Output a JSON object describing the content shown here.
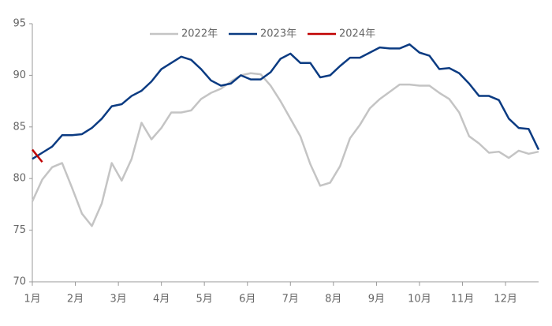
{
  "chart_data": {
    "type": "line",
    "x": [
      0,
      1,
      2,
      3,
      4,
      5,
      6,
      7,
      8,
      9,
      10,
      11,
      12,
      13,
      14,
      15,
      16,
      17,
      18,
      19,
      20,
      21,
      22,
      23,
      24,
      25,
      26,
      27,
      28,
      29,
      30,
      31,
      32,
      33,
      34,
      35,
      36,
      37,
      38,
      39,
      40,
      41,
      42,
      43,
      44,
      45,
      46,
      47,
      48,
      49,
      50,
      51
    ],
    "xlim": [
      0,
      51
    ],
    "xticks": [
      {
        "value": 0,
        "label": "1月"
      },
      {
        "value": 4.33,
        "label": "2月"
      },
      {
        "value": 8.67,
        "label": "3月"
      },
      {
        "value": 13,
        "label": "4月"
      },
      {
        "value": 17.33,
        "label": "5月"
      },
      {
        "value": 21.67,
        "label": "6月"
      },
      {
        "value": 26,
        "label": "7月"
      },
      {
        "value": 30.33,
        "label": "8月"
      },
      {
        "value": 34.67,
        "label": "9月"
      },
      {
        "value": 39,
        "label": "10月"
      },
      {
        "value": 43.33,
        "label": "11月"
      },
      {
        "value": 47.67,
        "label": "12月"
      }
    ],
    "ylim": [
      70,
      95
    ],
    "yticks": [
      70,
      75,
      80,
      85,
      90,
      95
    ],
    "grid": false,
    "legend": "top",
    "series": [
      {
        "name": "2022年",
        "color": "#c4c4c4",
        "values": [
          77.8,
          79.9,
          81.1,
          81.5,
          79.1,
          76.6,
          75.4,
          77.6,
          81.5,
          79.8,
          81.9,
          85.4,
          83.8,
          84.9,
          86.4,
          86.4,
          86.6,
          87.7,
          88.3,
          88.7,
          89.4,
          90.0,
          90.2,
          90.1,
          89.0,
          87.5,
          85.8,
          84.1,
          81.4,
          79.3,
          79.6,
          81.2,
          83.9,
          85.2,
          86.8,
          87.7,
          88.4,
          89.1,
          89.1,
          89.0,
          89.0,
          88.3,
          87.7,
          86.4,
          84.1,
          83.4,
          82.5,
          82.6,
          82.0,
          82.7,
          82.4,
          82.6
        ]
      },
      {
        "name": "2023年",
        "color": "#0b3b82",
        "values": [
          81.9,
          82.5,
          83.1,
          84.2,
          84.2,
          84.3,
          84.9,
          85.8,
          87.0,
          87.2,
          88.0,
          88.5,
          89.4,
          90.6,
          91.2,
          91.8,
          91.5,
          90.6,
          89.5,
          89.0,
          89.2,
          90.0,
          89.6,
          89.6,
          90.3,
          91.6,
          92.1,
          91.2,
          91.2,
          89.8,
          90.0,
          90.9,
          91.7,
          91.7,
          92.2,
          92.7,
          92.6,
          92.6,
          93.0,
          92.2,
          91.9,
          90.6,
          90.7,
          90.2,
          89.2,
          88.0,
          88.0,
          87.6,
          85.8,
          84.9,
          84.8,
          82.8
        ]
      },
      {
        "name": "2024年",
        "color": "#c00000",
        "values": [
          82.8,
          81.6,
          null,
          null,
          null,
          null,
          null,
          null,
          null,
          null,
          null,
          null,
          null,
          null,
          null,
          null,
          null,
          null,
          null,
          null,
          null,
          null,
          null,
          null,
          null,
          null,
          null,
          null,
          null,
          null,
          null,
          null,
          null,
          null,
          null,
          null,
          null,
          null,
          null,
          null,
          null,
          null,
          null,
          null,
          null,
          null,
          null,
          null,
          null,
          null,
          null,
          null
        ]
      }
    ]
  }
}
